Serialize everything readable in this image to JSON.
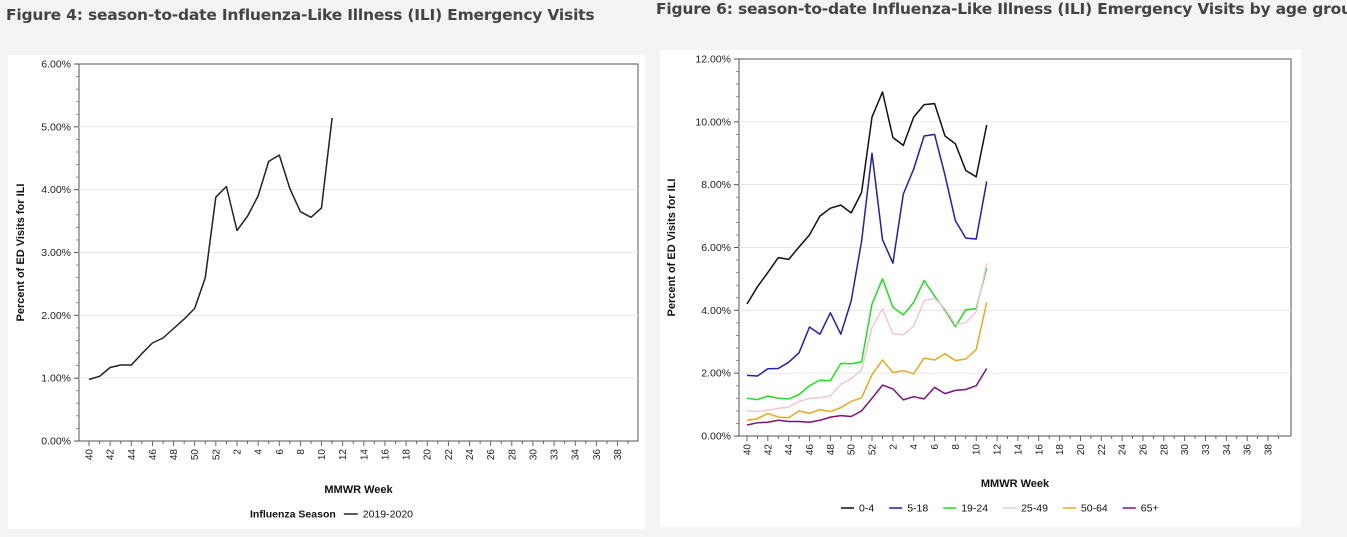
{
  "figures": [
    {
      "title": "Figure 4: season-to-date Influenza-Like Illness (ILI) Emergency Visits"
    },
    {
      "title": "Figure 6: season-to-date Influenza-Like Illness (ILI) Emergency Visits by age groups"
    }
  ],
  "chart_data": [
    {
      "type": "line",
      "title": "",
      "xlabel": "MMWR Week",
      "ylabel": "Percent of ED Visits for ILI",
      "ylim": [
        0,
        6
      ],
      "y_ticks": [
        "0.00%",
        "1.00%",
        "2.00%",
        "3.00%",
        "4.00%",
        "5.00%",
        "6.00%"
      ],
      "x_tick_labels": [
        "40",
        "42",
        "44",
        "46",
        "48",
        "50",
        "52",
        "2",
        "4",
        "6",
        "8",
        "10",
        "12",
        "14",
        "16",
        "18",
        "20",
        "22",
        "24",
        "26",
        "28",
        "30",
        "33",
        "34",
        "36",
        "38"
      ],
      "grid": true,
      "legend": {
        "position": "bottom",
        "title": "Influenza Season",
        "colors": [
          "#222222"
        ]
      },
      "series": [
        {
          "name": "2019-2020",
          "values": [
            0.98,
            1.03,
            1.17,
            1.21,
            1.21,
            1.39,
            1.56,
            1.64,
            1.79,
            1.94,
            2.11,
            2.6,
            3.88,
            4.05,
            3.35,
            3.58,
            3.9,
            4.45,
            4.55,
            4.02,
            3.65,
            3.56,
            3.71,
            5.14
          ]
        }
      ]
    },
    {
      "type": "line",
      "title": "",
      "xlabel": "MMWR Week",
      "ylabel": "Percent of ED Visits for ILI",
      "ylim": [
        0,
        12
      ],
      "y_ticks": [
        "0.00%",
        "2.00%",
        "4.00%",
        "6.00%",
        "8.00%",
        "10.00%",
        "12.00%"
      ],
      "x_tick_labels": [
        "40",
        "42",
        "44",
        "46",
        "48",
        "50",
        "52",
        "2",
        "4",
        "6",
        "8",
        "10",
        "12",
        "14",
        "16",
        "18",
        "20",
        "22",
        "24",
        "26",
        "28",
        "30",
        "33",
        "34",
        "36",
        "38"
      ],
      "grid": true,
      "legend": {
        "position": "bottom",
        "colors": [
          "#111111",
          "#1f1fb4",
          "#22dd22",
          "#f0c8d4",
          "#e8a820",
          "#800f80"
        ]
      },
      "series": [
        {
          "name": "0-4",
          "values": [
            4.2,
            4.75,
            5.2,
            5.68,
            5.62,
            6.02,
            6.4,
            7.0,
            7.25,
            7.35,
            7.1,
            7.75,
            10.15,
            10.95,
            9.5,
            9.25,
            10.15,
            10.55,
            10.58,
            9.55,
            9.3,
            8.45,
            8.25,
            9.9
          ]
        },
        {
          "name": "5-18",
          "values": [
            1.93,
            1.91,
            2.14,
            2.15,
            2.35,
            2.65,
            3.47,
            3.24,
            3.92,
            3.24,
            4.3,
            6.2,
            9.0,
            6.25,
            5.5,
            7.7,
            8.5,
            9.55,
            9.6,
            8.3,
            6.85,
            6.3,
            6.27,
            8.1
          ]
        },
        {
          "name": "19-24",
          "values": [
            1.2,
            1.16,
            1.27,
            1.2,
            1.18,
            1.32,
            1.6,
            1.78,
            1.76,
            2.31,
            2.3,
            2.36,
            4.2,
            5.0,
            4.1,
            3.85,
            4.25,
            4.95,
            4.45,
            4.0,
            3.48,
            4.02,
            4.05,
            5.35
          ]
        },
        {
          "name": "25-49",
          "values": [
            0.8,
            0.78,
            0.82,
            0.88,
            0.92,
            1.1,
            1.2,
            1.22,
            1.28,
            1.65,
            1.82,
            2.1,
            3.45,
            4.05,
            3.25,
            3.22,
            3.5,
            4.3,
            4.38,
            4.05,
            3.55,
            3.6,
            3.95,
            5.5
          ]
        },
        {
          "name": "50-64",
          "values": [
            0.5,
            0.55,
            0.72,
            0.6,
            0.58,
            0.8,
            0.72,
            0.84,
            0.78,
            0.9,
            1.1,
            1.22,
            1.95,
            2.42,
            2.02,
            2.08,
            1.98,
            2.48,
            2.42,
            2.62,
            2.4,
            2.45,
            2.75,
            4.25
          ]
        },
        {
          "name": "65+",
          "values": [
            0.35,
            0.42,
            0.44,
            0.5,
            0.46,
            0.46,
            0.44,
            0.5,
            0.6,
            0.65,
            0.62,
            0.8,
            1.2,
            1.62,
            1.5,
            1.15,
            1.25,
            1.18,
            1.55,
            1.35,
            1.45,
            1.48,
            1.6,
            2.15
          ]
        }
      ]
    }
  ]
}
